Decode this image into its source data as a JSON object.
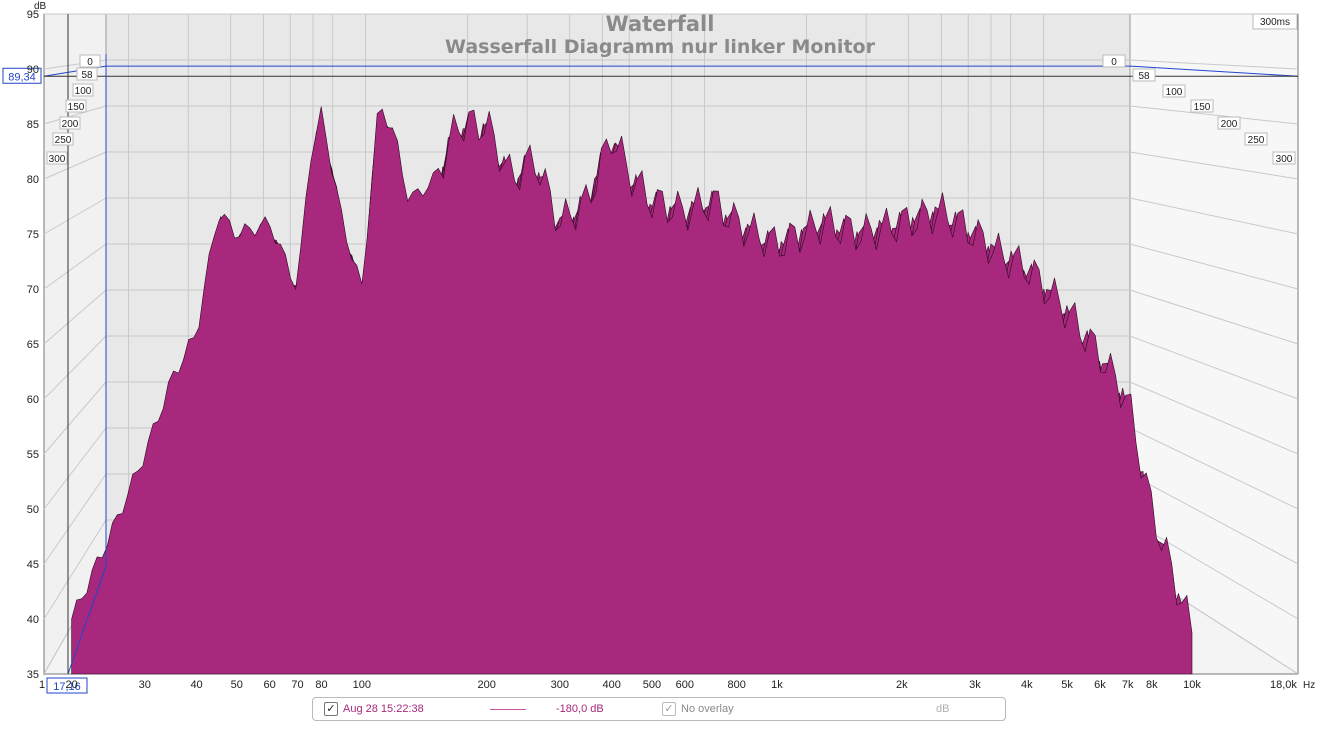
{
  "chart_data": {
    "type": "area",
    "title": "Waterfall",
    "subtitle": "Wasserfall Diagramm nur linker Monitor",
    "ylabel": "dB",
    "xlabel": "Hz",
    "ylim": [
      35,
      95
    ],
    "xlim": [
      17.16,
      18000
    ],
    "x_scale": "log",
    "y_ticks": [
      35,
      40,
      45,
      50,
      55,
      60,
      65,
      70,
      75,
      80,
      85,
      90,
      95
    ],
    "x_ticks": [
      {
        "v": 20,
        "label": "20"
      },
      {
        "v": 30,
        "label": "30"
      },
      {
        "v": 40,
        "label": "40"
      },
      {
        "v": 50,
        "label": "50"
      },
      {
        "v": 60,
        "label": "60"
      },
      {
        "v": 70,
        "label": "70"
      },
      {
        "v": 80,
        "label": "80"
      },
      {
        "v": 100,
        "label": "100"
      },
      {
        "v": 200,
        "label": "200"
      },
      {
        "v": 300,
        "label": "300"
      },
      {
        "v": 400,
        "label": "400"
      },
      {
        "v": 500,
        "label": "500"
      },
      {
        "v": 600,
        "label": "600"
      },
      {
        "v": 800,
        "label": "800"
      },
      {
        "v": 1000,
        "label": "1k"
      },
      {
        "v": 2000,
        "label": "2k"
      },
      {
        "v": 3000,
        "label": "3k"
      },
      {
        "v": 4000,
        "label": "4k"
      },
      {
        "v": 5000,
        "label": "5k"
      },
      {
        "v": 6000,
        "label": "6k"
      },
      {
        "v": 7000,
        "label": "7k"
      },
      {
        "v": 8000,
        "label": "8k"
      },
      {
        "v": 10000,
        "label": "10k"
      }
    ],
    "x_end_label": "18,0k",
    "x_start_label": "1",
    "time_ticks_left": [
      "0",
      "58",
      "100",
      "150",
      "200",
      "250",
      "300"
    ],
    "time_ticks_right": [
      "0",
      "58",
      "100",
      "150",
      "200",
      "250",
      "300"
    ],
    "time_range_label": "300ms",
    "cursor": {
      "x_readout": "17,16",
      "y_readout": "89,34",
      "y_value": 89.34
    },
    "slice_count": 44,
    "fill_color": "#a8287e",
    "series": [
      {
        "name": "Aug 28 15:22:38",
        "x": [
          20,
          25,
          30,
          35,
          40,
          45,
          50,
          60,
          70,
          75,
          80,
          90,
          100,
          110,
          120,
          130,
          150,
          170,
          200,
          230,
          260,
          300,
          350,
          400,
          450,
          500,
          600,
          700,
          800,
          1000,
          1300,
          1600,
          2000,
          2500,
          3000,
          3500,
          4000,
          5000,
          6000,
          7000,
          8000,
          9000,
          10000
        ],
        "values": [
          40,
          48,
          55,
          62,
          66,
          77,
          75,
          76,
          70,
          82,
          86,
          76,
          70,
          87,
          84,
          78,
          80,
          85,
          85,
          80,
          82,
          76,
          78,
          84,
          80,
          78,
          77,
          78,
          76,
          74,
          76,
          75,
          76,
          77,
          75,
          73,
          72,
          68,
          64,
          60,
          50,
          44,
          39
        ]
      }
    ]
  },
  "legend": {
    "label": "Aug 28 15:22:38",
    "level": "-180,0 dB",
    "overlay": "No overlay",
    "unit": "dB",
    "line_color": "#c8559d",
    "checked_mark": "✓"
  }
}
